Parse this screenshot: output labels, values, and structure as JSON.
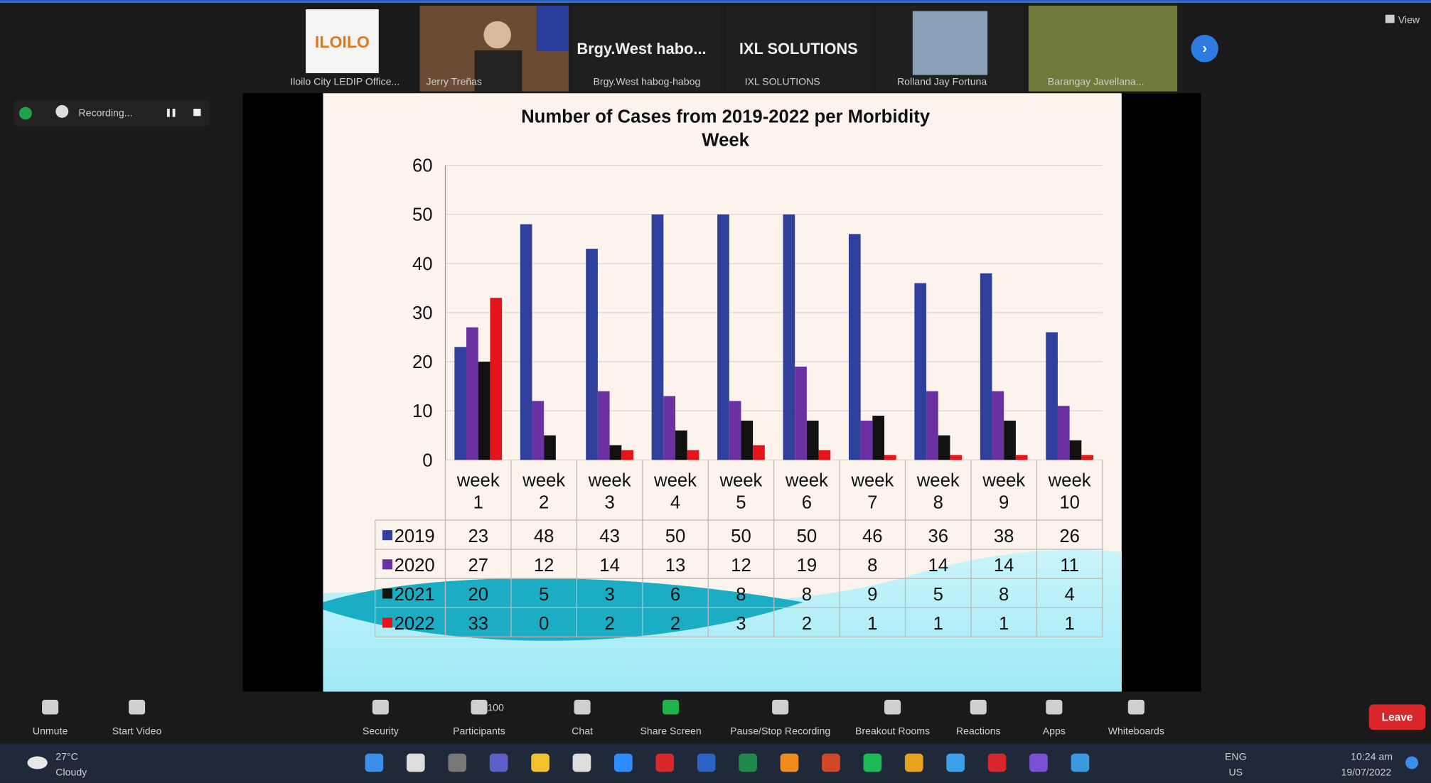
{
  "chart_data": {
    "type": "bar",
    "title": "Number of Cases from 2019-2022 per Morbidity Week",
    "categories": [
      "week 1",
      "week 2",
      "week 3",
      "week 4",
      "week 5",
      "week 6",
      "week 7",
      "week 8",
      "week 9",
      "week 10"
    ],
    "series": [
      {
        "name": "2019",
        "color": "#2f3f9c",
        "values": [
          23,
          48,
          43,
          50,
          50,
          50,
          46,
          36,
          38,
          26
        ]
      },
      {
        "name": "2020",
        "color": "#6b31a3",
        "values": [
          27,
          12,
          14,
          13,
          12,
          19,
          8,
          14,
          14,
          11
        ]
      },
      {
        "name": "2021",
        "color": "#111111",
        "values": [
          20,
          5,
          3,
          6,
          8,
          8,
          9,
          5,
          8,
          4
        ]
      },
      {
        "name": "2022",
        "color": "#e5141b",
        "values": [
          33,
          0,
          2,
          2,
          3,
          2,
          1,
          1,
          1,
          1
        ]
      }
    ],
    "ylim": [
      0,
      60
    ],
    "yticks": [
      0,
      10,
      20,
      30,
      40,
      50,
      60
    ],
    "grid": true
  },
  "ui": {
    "participants": [
      "Iloilo City LEDIP Office...",
      "Jerry Treñas",
      "Brgy.West habog-habog",
      "IXL SOLUTIONS",
      "Rolland Jay Fortuna",
      "Barangay Javellana..."
    ],
    "tile_titles": [
      "Brgy.West habo...",
      "IXL SOLUTIONS"
    ],
    "view": "View",
    "recording": "Recording...",
    "toolbar": [
      "Unmute",
      "Start Video",
      "Security",
      "Participants",
      "Chat",
      "Share Screen",
      "Pause/Stop Recording",
      "Breakout Rooms",
      "Reactions",
      "Apps",
      "Whiteboards"
    ],
    "participant_count": 100,
    "leave": "Leave",
    "taskbar": {
      "temperature": "27°C",
      "weather": "Cloudy",
      "lang": "ENG",
      "region": "US",
      "time": "10:24 am",
      "date": "19/07/2022"
    }
  }
}
